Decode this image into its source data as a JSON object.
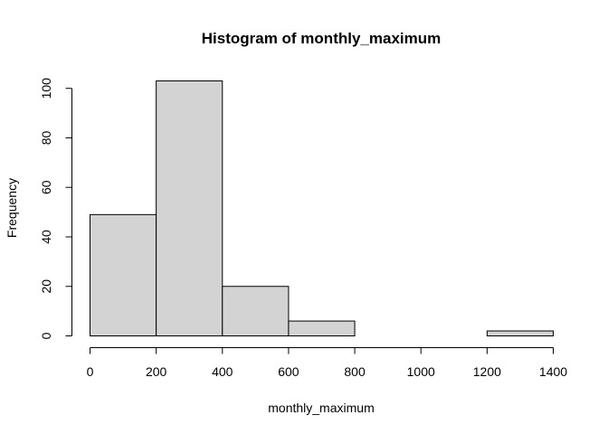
{
  "chart_data": {
    "type": "histogram",
    "title": "Histogram of monthly_maximum",
    "xlabel": "monthly_maximum",
    "ylabel": "Frequency",
    "bins": [
      {
        "start": 0,
        "end": 200,
        "count": 49
      },
      {
        "start": 200,
        "end": 400,
        "count": 103
      },
      {
        "start": 400,
        "end": 600,
        "count": 20
      },
      {
        "start": 600,
        "end": 800,
        "count": 6
      },
      {
        "start": 800,
        "end": 1000,
        "count": 0
      },
      {
        "start": 1000,
        "end": 1200,
        "count": 0
      },
      {
        "start": 1200,
        "end": 1400,
        "count": 2
      }
    ],
    "xticks": [
      0,
      200,
      400,
      600,
      800,
      1000,
      1200,
      1400
    ],
    "yticks": [
      0,
      20,
      40,
      60,
      80,
      100
    ],
    "xlim": [
      0,
      1400
    ],
    "ylim": [
      0,
      103
    ],
    "bar_fill": "#d3d3d3",
    "bar_stroke": "#000000",
    "grid": false
  }
}
